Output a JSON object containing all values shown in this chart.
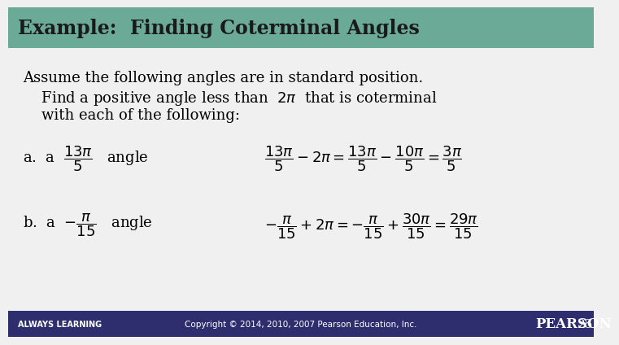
{
  "title": "Example:  Finding Coterminal Angles",
  "title_bg": "#6aaa96",
  "title_color": "#1a1a1a",
  "body_bg": "#f0f0f0",
  "footer_bg": "#2e2e6e",
  "footer_text": "Copyright © 2014, 2010, 2007 Pearson Education, Inc.",
  "footer_left": "ALWAYS LEARNING",
  "footer_right": "PEARSON",
  "footer_page": "25",
  "line1": "Assume the following angles are in standard position.",
  "line3": "    with each of the following:"
}
